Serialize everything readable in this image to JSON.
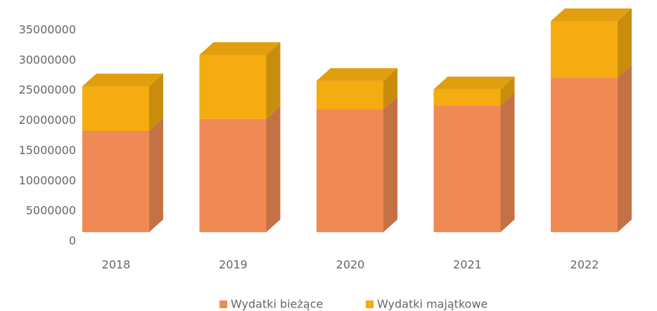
{
  "chart_data": {
    "type": "bar3d_stacked",
    "categories": [
      "2018",
      "2019",
      "2020",
      "2021",
      "2022"
    ],
    "series": [
      {
        "name": "Wydatki bieżące",
        "color": "#f08a55",
        "values": [
          16800000,
          18800000,
          20400000,
          21000000,
          25600000
        ]
      },
      {
        "name": "Wydatki majątkowe",
        "color": "#f5ac10",
        "values": [
          7400000,
          10600000,
          4700000,
          2700000,
          9400000
        ]
      }
    ],
    "ylim": [
      0,
      35000000
    ],
    "yticks": [
      0,
      5000000,
      10000000,
      15000000,
      20000000,
      25000000,
      30000000,
      35000000
    ],
    "legend": "bottom"
  }
}
